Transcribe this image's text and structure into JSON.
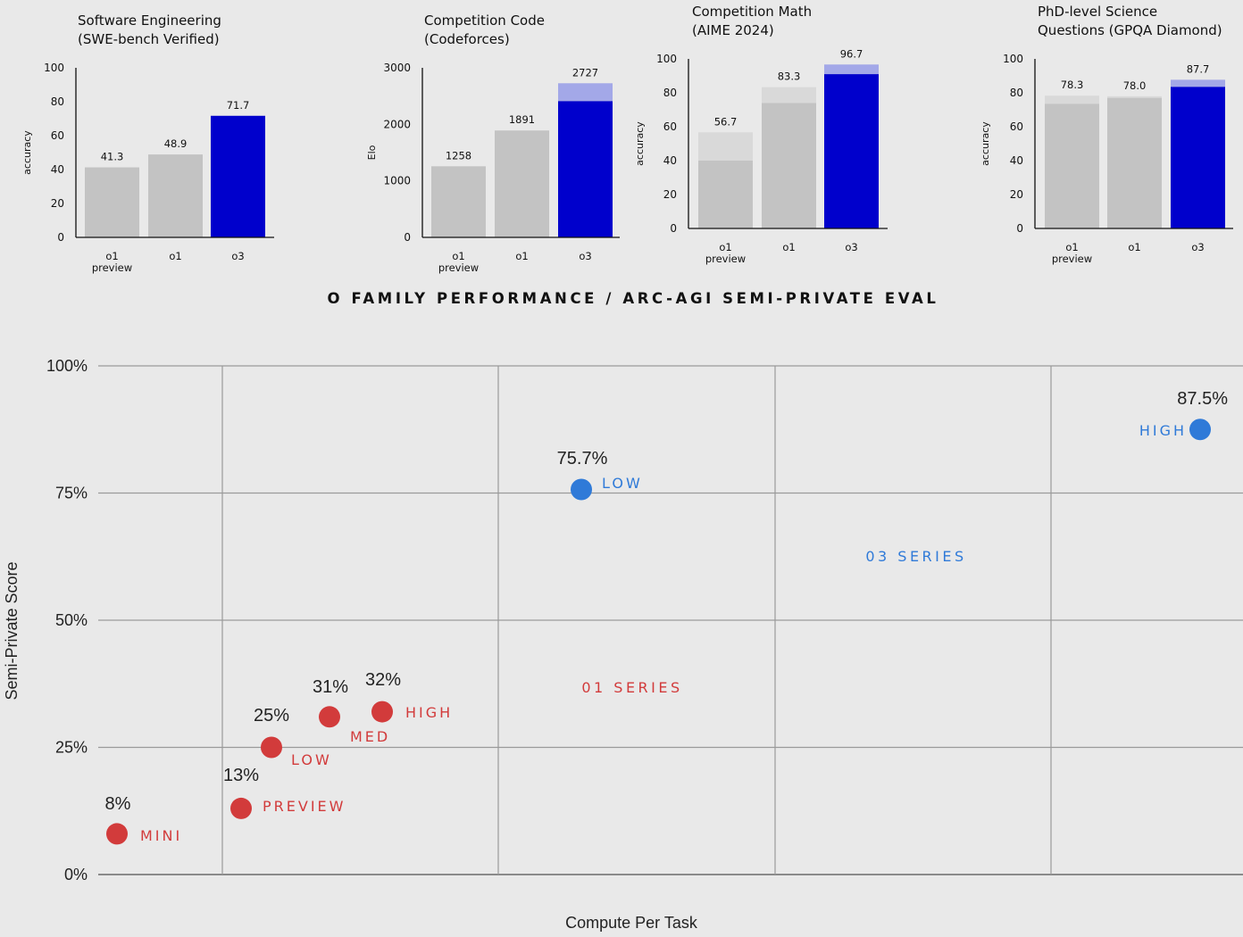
{
  "center_title": "O FAMILY PERFORMANCE / ARC-AGI SEMI-PRIVATE EVAL",
  "colors": {
    "gray_bar": "#c3c3c3",
    "gray_light": "#d9d9d9",
    "o3_blue": "#0000cc",
    "o3_light": "#a3a8e8",
    "o1_red": "#d23b3b",
    "o3_point": "#2f7ad8"
  },
  "chart_data": [
    {
      "type": "bar",
      "title": [
        "Software Engineering",
        "(SWE-bench Verified)"
      ],
      "ylabel": "accuracy",
      "ylim": [
        0,
        100
      ],
      "yticks": [
        "0",
        "20",
        "40",
        "60",
        "80",
        "100"
      ],
      "categories": [
        [
          "o1",
          "preview"
        ],
        [
          "o1"
        ],
        [
          "o3"
        ]
      ],
      "values": [
        41.3,
        48.9,
        71.7
      ],
      "solid_values": [
        41.3,
        48.9,
        71.7
      ],
      "value_labels": [
        "41.3",
        "48.9",
        "71.7"
      ],
      "highlight": [
        false,
        false,
        true
      ]
    },
    {
      "type": "bar",
      "title": [
        "Competition Code",
        "(Codeforces)"
      ],
      "ylabel": "Elo",
      "ylim": [
        0,
        3000
      ],
      "yticks": [
        "0",
        "1000",
        "2000",
        "3000"
      ],
      "categories": [
        [
          "o1",
          "preview"
        ],
        [
          "o1"
        ],
        [
          "o3"
        ]
      ],
      "values": [
        1258,
        1891,
        2727
      ],
      "solid_values": [
        1258,
        1891,
        2410
      ],
      "value_labels": [
        "1258",
        "1891",
        "2727"
      ],
      "highlight": [
        false,
        false,
        true
      ]
    },
    {
      "type": "bar",
      "title": [
        "Competition Math",
        "(AIME 2024)"
      ],
      "ylabel": "accuracy",
      "ylim": [
        0,
        100
      ],
      "yticks": [
        "0",
        "20",
        "40",
        "60",
        "80",
        "100"
      ],
      "categories": [
        [
          "o1",
          "preview"
        ],
        [
          "o1"
        ],
        [
          "o3"
        ]
      ],
      "values": [
        56.7,
        83.3,
        96.7
      ],
      "solid_values": [
        40.0,
        74.0,
        91.0
      ],
      "value_labels": [
        "56.7",
        "83.3",
        "96.7"
      ],
      "highlight": [
        false,
        false,
        true
      ]
    },
    {
      "type": "bar",
      "title": [
        "PhD-level Science",
        "Questions (GPQA Diamond)"
      ],
      "ylabel": "accuracy",
      "ylim": [
        0,
        100
      ],
      "yticks": [
        "0",
        "20",
        "40",
        "60",
        "80",
        "100"
      ],
      "categories": [
        [
          "o1",
          "preview"
        ],
        [
          "o1"
        ],
        [
          "o3"
        ]
      ],
      "values": [
        78.3,
        78.0,
        87.7
      ],
      "solid_values": [
        73.5,
        77.0,
        83.5
      ],
      "value_labels": [
        "78.3",
        "78.0",
        "87.7"
      ],
      "highlight": [
        false,
        false,
        true
      ]
    },
    {
      "type": "scatter",
      "xlabel": "Compute Per Task",
      "ylabel": "Semi-Private Score",
      "ylim": [
        0,
        100
      ],
      "yticks": [
        "0%",
        "25%",
        "50%",
        "75%",
        "100%"
      ],
      "grid": true,
      "series": [
        {
          "name": "01 SERIES",
          "color": "#d23b3b",
          "points": [
            {
              "label": "MINI",
              "score": 8,
              "score_label": "8%"
            },
            {
              "label": "PREVIEW",
              "score": 13,
              "score_label": "13%"
            },
            {
              "label": "LOW",
              "score": 25,
              "score_label": "25%"
            },
            {
              "label": "MED",
              "score": 31,
              "score_label": "31%"
            },
            {
              "label": "HIGH",
              "score": 32,
              "score_label": "32%"
            }
          ]
        },
        {
          "name": "03 SERIES",
          "color": "#2f7ad8",
          "points": [
            {
              "label": "LOW",
              "score": 75.7,
              "score_label": "75.7%"
            },
            {
              "label": "HIGH",
              "score": 87.5,
              "score_label": "87.5%"
            }
          ]
        }
      ]
    }
  ]
}
